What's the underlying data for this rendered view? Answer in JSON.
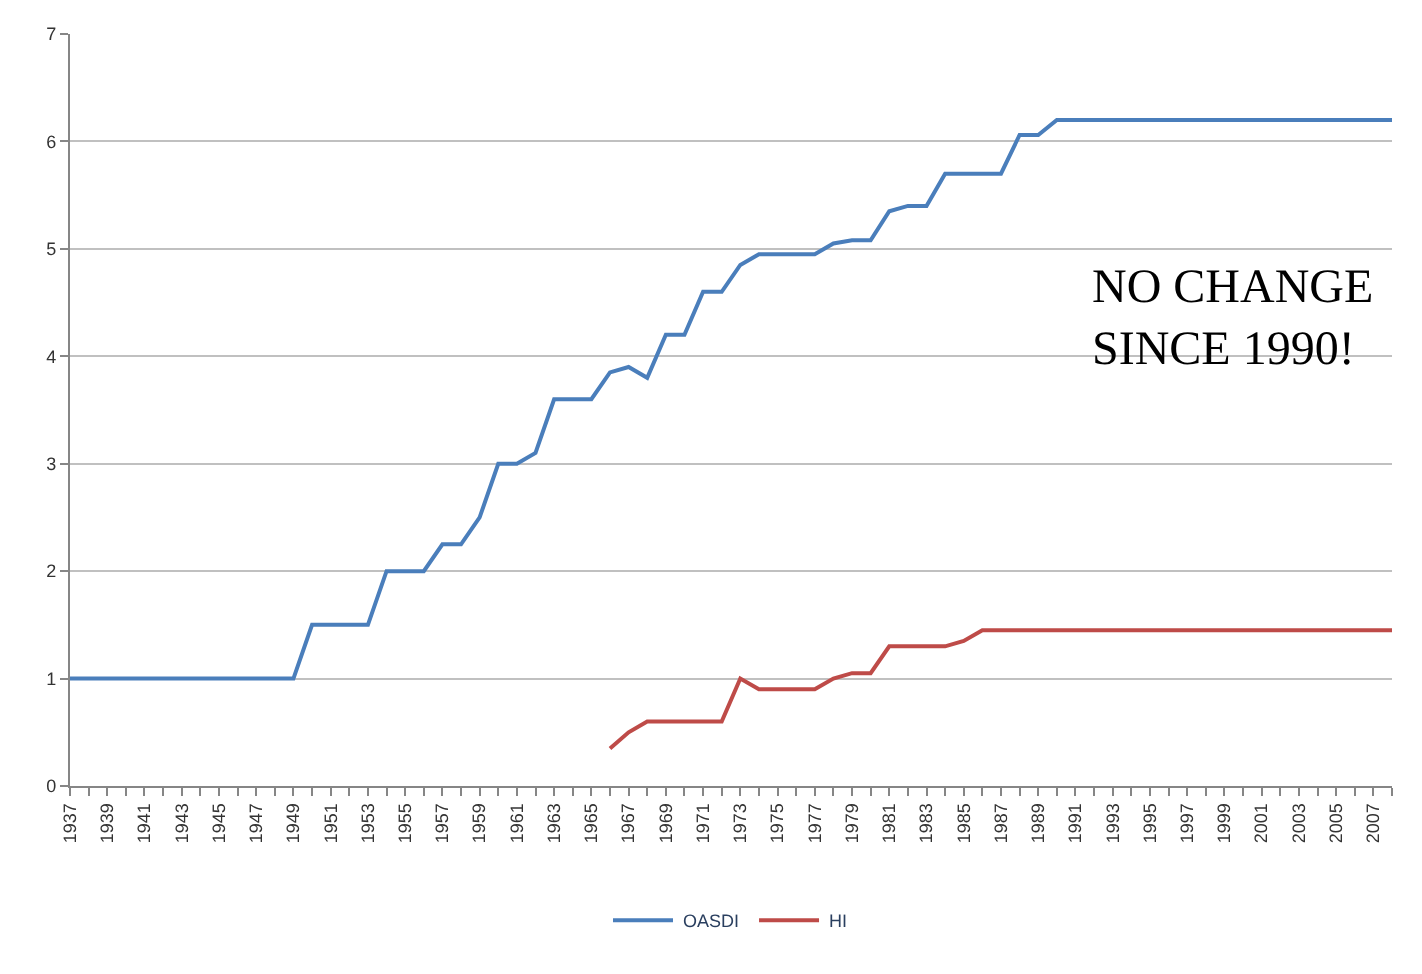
{
  "chart_data": {
    "type": "line",
    "x": [
      1937,
      1938,
      1939,
      1940,
      1941,
      1942,
      1943,
      1944,
      1945,
      1946,
      1947,
      1948,
      1949,
      1950,
      1951,
      1952,
      1953,
      1954,
      1955,
      1956,
      1957,
      1958,
      1959,
      1960,
      1961,
      1962,
      1963,
      1964,
      1965,
      1966,
      1967,
      1968,
      1969,
      1970,
      1971,
      1972,
      1973,
      1974,
      1975,
      1976,
      1977,
      1978,
      1979,
      1980,
      1981,
      1982,
      1983,
      1984,
      1985,
      1986,
      1987,
      1988,
      1989,
      1990,
      1991,
      1992,
      1993,
      1994,
      1995,
      1996,
      1997,
      1998,
      1999,
      2000,
      2001,
      2002,
      2003,
      2004,
      2005,
      2006,
      2007,
      2008
    ],
    "series": [
      {
        "name": "OASDI",
        "color": "#4a7ebb",
        "values": [
          1,
          1,
          1,
          1,
          1,
          1,
          1,
          1,
          1,
          1,
          1,
          1,
          1,
          1.5,
          1.5,
          1.5,
          1.5,
          2,
          2,
          2,
          2.25,
          2.25,
          2.5,
          3,
          3,
          3.1,
          3.6,
          3.6,
          3.6,
          3.85,
          3.9,
          3.8,
          4.2,
          4.2,
          4.6,
          4.6,
          4.85,
          4.95,
          4.95,
          4.95,
          4.95,
          5.05,
          5.08,
          5.08,
          5.35,
          5.4,
          5.4,
          5.7,
          5.7,
          5.7,
          5.7,
          6.06,
          6.06,
          6.2,
          6.2,
          6.2,
          6.2,
          6.2,
          6.2,
          6.2,
          6.2,
          6.2,
          6.2,
          6.2,
          6.2,
          6.2,
          6.2,
          6.2,
          6.2,
          6.2,
          6.2,
          6.2
        ]
      },
      {
        "name": "HI",
        "color": "#be4b48",
        "values": [
          null,
          null,
          null,
          null,
          null,
          null,
          null,
          null,
          null,
          null,
          null,
          null,
          null,
          null,
          null,
          null,
          null,
          null,
          null,
          null,
          null,
          null,
          null,
          null,
          null,
          null,
          null,
          null,
          null,
          0.35,
          0.5,
          0.6,
          0.6,
          0.6,
          0.6,
          0.6,
          1.0,
          0.9,
          0.9,
          0.9,
          0.9,
          1.0,
          1.05,
          1.05,
          1.3,
          1.3,
          1.3,
          1.3,
          1.35,
          1.45,
          1.45,
          1.45,
          1.45,
          1.45,
          1.45,
          1.45,
          1.45,
          1.45,
          1.45,
          1.45,
          1.45,
          1.45,
          1.45,
          1.45,
          1.45,
          1.45,
          1.45,
          1.45,
          1.45,
          1.45,
          1.45,
          1.45
        ]
      }
    ],
    "xlim": [
      1937,
      2008
    ],
    "xticks": [
      1937,
      {
        "value": 1938,
        "label": null
      },
      1939,
      {
        "value": 1940,
        "label": null
      },
      1941,
      {
        "value": 1942,
        "label": null
      },
      1943,
      {
        "value": 1944,
        "label": null
      },
      1945,
      {
        "value": 1946,
        "label": null
      },
      1947,
      {
        "value": 1948,
        "label": null
      },
      1949,
      {
        "value": 1950,
        "label": null
      },
      1951,
      {
        "value": 1952,
        "label": null
      },
      1953,
      {
        "value": 1954,
        "label": null
      },
      1955,
      {
        "value": 1956,
        "label": null
      },
      1957,
      {
        "value": 1958,
        "label": null
      },
      1959,
      {
        "value": 1960,
        "label": null
      },
      1961,
      {
        "value": 1962,
        "label": null
      },
      1963,
      {
        "value": 1964,
        "label": null
      },
      1965,
      {
        "value": 1966,
        "label": null
      },
      1967,
      {
        "value": 1968,
        "label": null
      },
      1969,
      {
        "value": 1970,
        "label": null
      },
      1971,
      {
        "value": 1972,
        "label": null
      },
      1973,
      {
        "value": 1974,
        "label": null
      },
      1975,
      {
        "value": 1976,
        "label": null
      },
      1977,
      {
        "value": 1978,
        "label": null
      },
      1979,
      {
        "value": 1980,
        "label": null
      },
      1981,
      {
        "value": 1982,
        "label": null
      },
      1983,
      {
        "value": 1984,
        "label": null
      },
      1985,
      {
        "value": 1986,
        "label": null
      },
      1987,
      {
        "value": 1988,
        "label": null
      },
      1989,
      {
        "value": 1990,
        "label": null
      },
      1991,
      {
        "value": 1992,
        "label": null
      },
      1993,
      {
        "value": 1994,
        "label": null
      },
      1995,
      {
        "value": 1996,
        "label": null
      },
      1997,
      {
        "value": 1998,
        "label": null
      },
      1999,
      {
        "value": 2000,
        "label": null
      },
      2001,
      {
        "value": 2002,
        "label": null
      },
      2003,
      {
        "value": 2004,
        "label": null
      },
      2005,
      {
        "value": 2006,
        "label": null
      },
      2007,
      {
        "value": 2008,
        "label": null
      }
    ],
    "ylim": [
      0,
      7
    ],
    "yticks": [
      0,
      1,
      2,
      3,
      4,
      5,
      6,
      7
    ],
    "annotations": [
      "NO CHANGE\nSINCE 1990!"
    ],
    "grid": "y",
    "legend": "bottom",
    "marker": "none",
    "line_style": "solid"
  }
}
